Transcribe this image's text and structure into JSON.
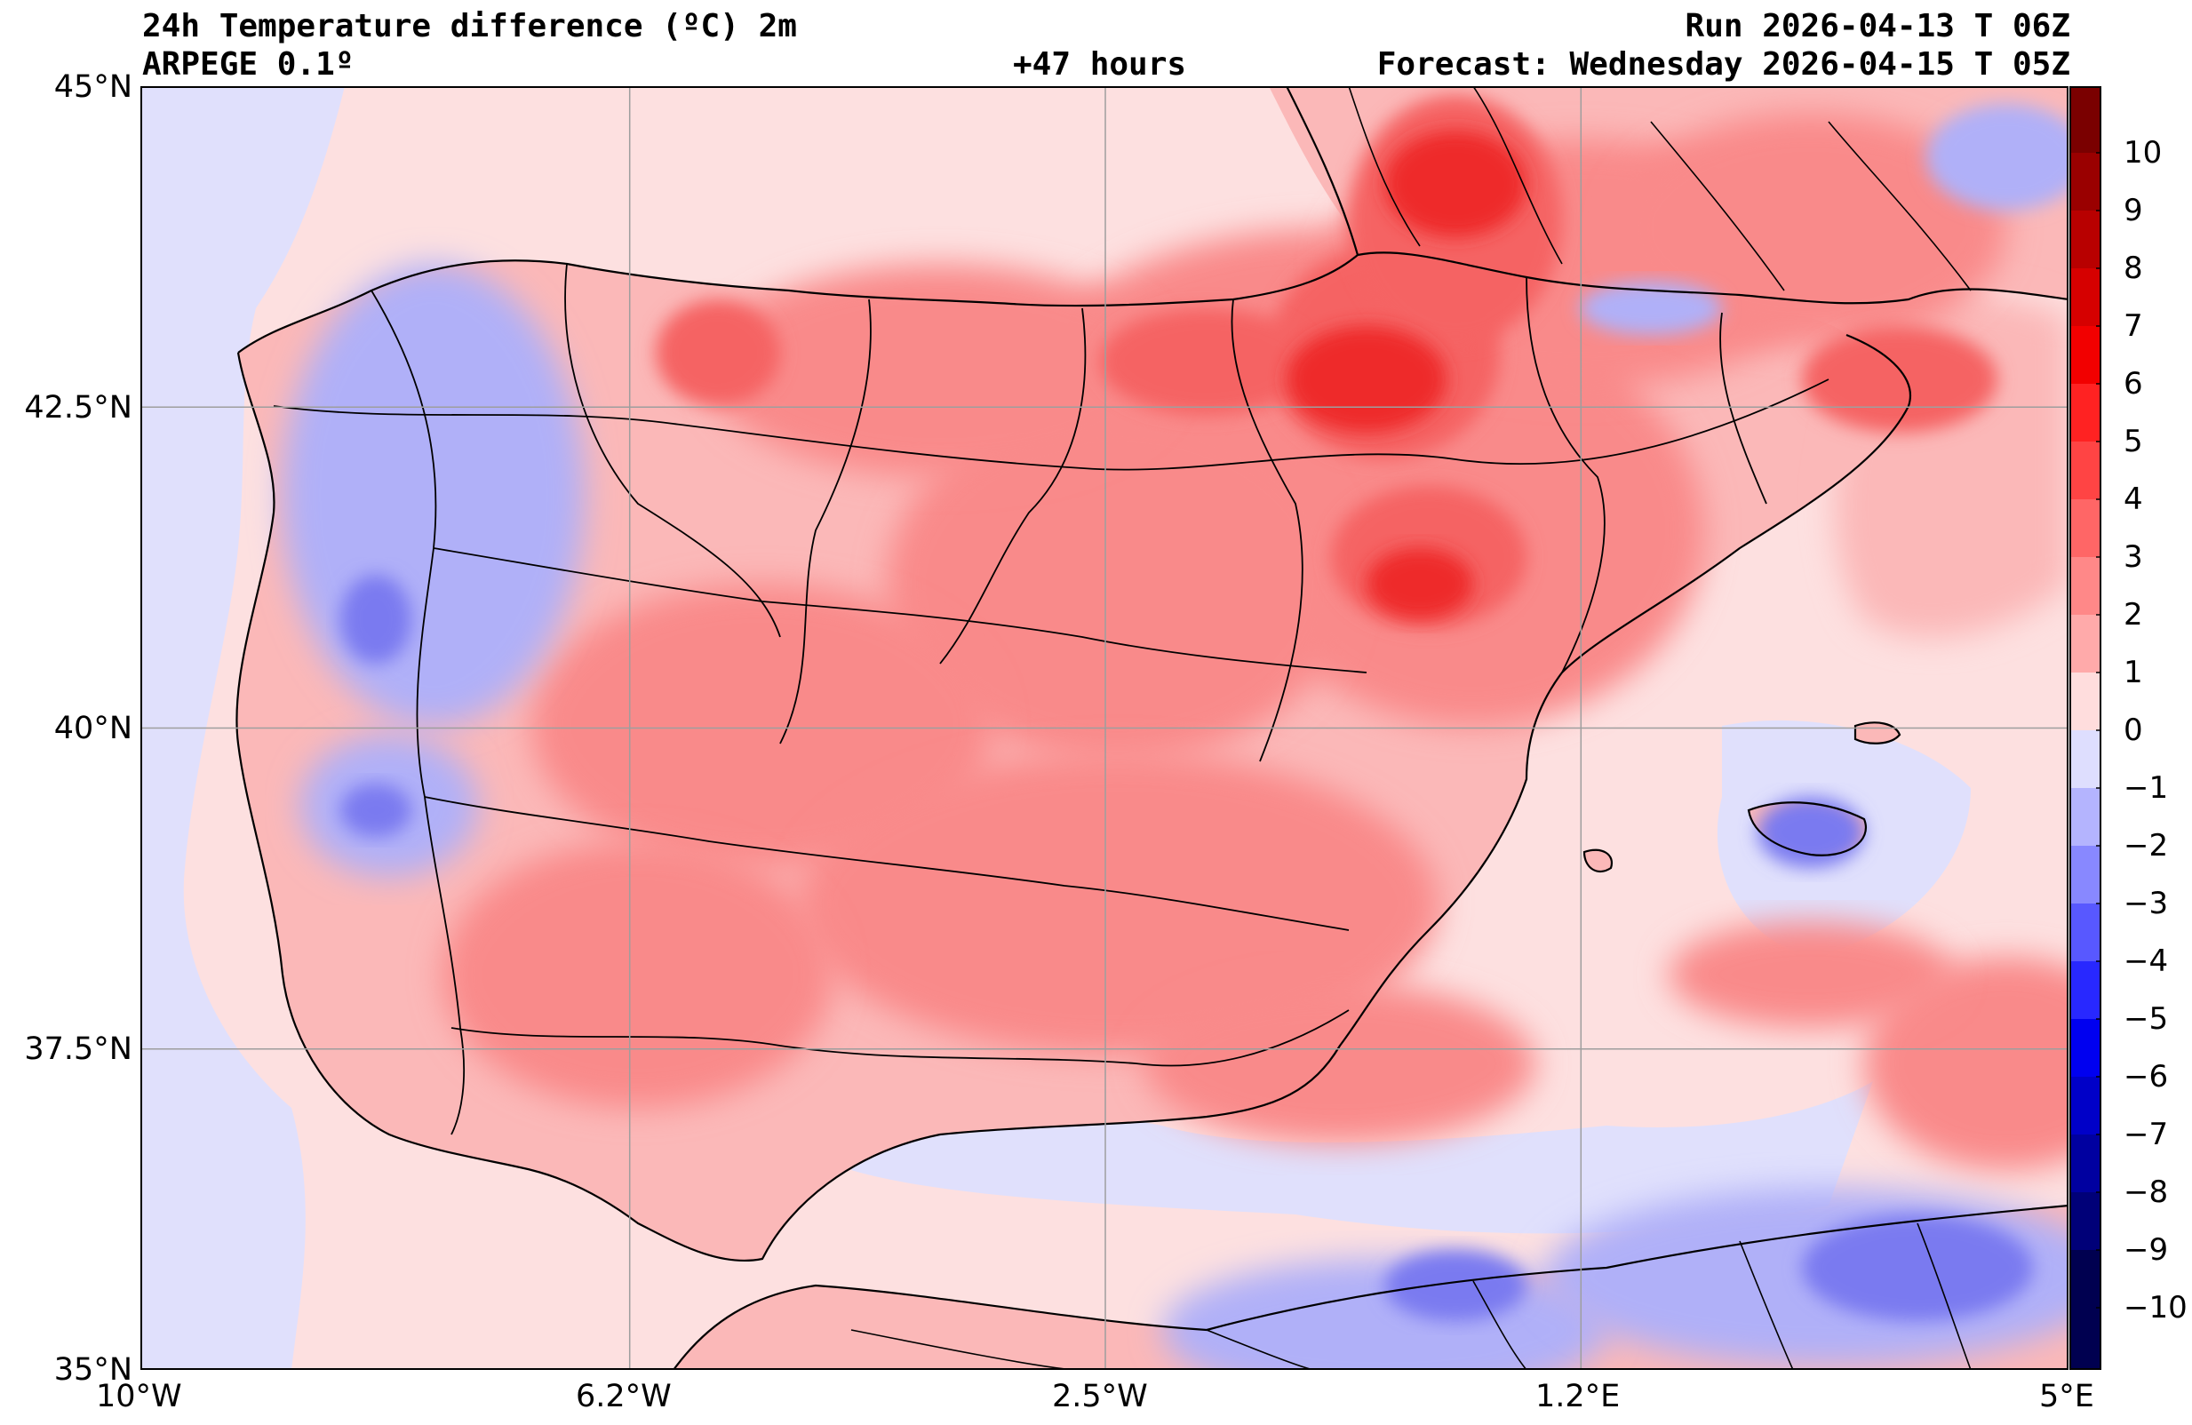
{
  "header": {
    "title": "24h Temperature difference (ºC) 2m",
    "model": "ARPEGE 0.1º",
    "lead_time": "+47 hours",
    "run": "Run 2026-04-13 T 06Z",
    "forecast": "Forecast: Wednesday 2026-04-15 T 05Z"
  },
  "map": {
    "region": "Iberian Peninsula, Balearic Islands, southern France and North Africa coast",
    "lon_range": [
      -10,
      5
    ],
    "lat_range": [
      35,
      45
    ],
    "lon_ticks": [
      {
        "value": -10,
        "label": "10°W"
      },
      {
        "value": -6.2,
        "label": "6.2°W"
      },
      {
        "value": -2.5,
        "label": "2.5°W"
      },
      {
        "value": 1.2,
        "label": "1.2°E"
      },
      {
        "value": 5,
        "label": "5°E"
      }
    ],
    "lat_ticks": [
      {
        "value": 45,
        "label": "45°N"
      },
      {
        "value": 42.5,
        "label": "42.5°N"
      },
      {
        "value": 40,
        "label": "40°N"
      },
      {
        "value": 37.5,
        "label": "37.5°N"
      },
      {
        "value": 35,
        "label": "35°N"
      }
    ],
    "grid": true,
    "colors": {
      "land_base": "#fbb8b8",
      "sea_base": "#fde0e0",
      "cool_light": "#e0e0fc",
      "cool_mid": "#b0b0f8",
      "cool_strong": "#7a7af0",
      "warm_mid": "#f98a8a",
      "warm_strong": "#f56464",
      "warm_peak": "#ee2a2a"
    }
  },
  "colorbar": {
    "labels": [
      "10",
      "9",
      "8",
      "7",
      "6",
      "5",
      "4",
      "3",
      "2",
      "1",
      "0",
      "−1",
      "−2",
      "−3",
      "−4",
      "−5",
      "−6",
      "−7",
      "−8",
      "−9",
      "−10"
    ],
    "colors": [
      "#7a0000",
      "#9a0000",
      "#b80000",
      "#d60000",
      "#f20000",
      "#ff2222",
      "#ff4444",
      "#ff6666",
      "#ff8888",
      "#ffaaaa",
      "#ffdddd",
      "#dedefe",
      "#b4b4fe",
      "#8888ff",
      "#5858ff",
      "#2828ff",
      "#0000f0",
      "#0000c8",
      "#0000a0",
      "#000078",
      "#000050"
    ]
  }
}
